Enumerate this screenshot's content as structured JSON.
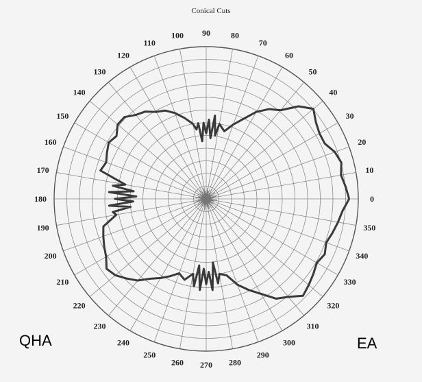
{
  "chart_data": {
    "type": "polar",
    "title": "Conical Cuts",
    "angular_ticks": [
      "0",
      "10",
      "20",
      "30",
      "40",
      "50",
      "60",
      "70",
      "80",
      "90",
      "100",
      "110",
      "120",
      "130",
      "140",
      "150",
      "160",
      "170",
      "180",
      "190",
      "200",
      "210",
      "220",
      "230",
      "240",
      "250",
      "260",
      "270",
      "280",
      "290",
      "300",
      "310",
      "320",
      "330",
      "340",
      "350"
    ],
    "radial_rings": 12,
    "grid": true,
    "series": [
      {
        "color": "#3a3a3a",
        "theta": [
          0,
          5,
          10,
          15,
          20,
          25,
          30,
          35,
          40,
          45,
          50,
          55,
          60,
          65,
          70,
          75,
          80,
          82,
          84,
          86,
          88,
          90,
          92,
          94,
          96,
          98,
          100,
          105,
          110,
          115,
          120,
          125,
          130,
          135,
          140,
          145,
          150,
          155,
          160,
          165,
          170,
          172,
          174,
          176,
          178,
          180,
          182,
          184,
          186,
          188,
          190,
          195,
          200,
          205,
          210,
          215,
          220,
          225,
          230,
          235,
          240,
          245,
          250,
          255,
          260,
          262,
          264,
          266,
          268,
          270,
          272,
          274,
          276,
          278,
          280,
          285,
          290,
          295,
          300,
          305,
          310,
          315,
          320,
          325,
          330,
          335,
          340,
          345,
          350,
          355
        ],
        "r": [
          0.94,
          0.92,
          0.9,
          0.92,
          0.9,
          0.86,
          0.86,
          0.88,
          0.92,
          0.86,
          0.76,
          0.72,
          0.66,
          0.58,
          0.52,
          0.46,
          0.5,
          0.42,
          0.55,
          0.4,
          0.52,
          0.43,
          0.5,
          0.38,
          0.5,
          0.46,
          0.5,
          0.55,
          0.6,
          0.64,
          0.66,
          0.7,
          0.72,
          0.76,
          0.76,
          0.72,
          0.74,
          0.72,
          0.7,
          0.72,
          0.54,
          0.62,
          0.48,
          0.64,
          0.46,
          0.6,
          0.48,
          0.64,
          0.5,
          0.62,
          0.6,
          0.7,
          0.72,
          0.74,
          0.76,
          0.8,
          0.78,
          0.74,
          0.7,
          0.64,
          0.6,
          0.56,
          0.52,
          0.55,
          0.5,
          0.58,
          0.44,
          0.6,
          0.46,
          0.56,
          0.48,
          0.6,
          0.42,
          0.56,
          0.5,
          0.52,
          0.6,
          0.66,
          0.72,
          0.8,
          0.84,
          0.9,
          0.88,
          0.86,
          0.84,
          0.86,
          0.84,
          0.86,
          0.88,
          0.9
        ]
      }
    ]
  },
  "labels": {
    "left": "QHA",
    "right": "EA"
  }
}
